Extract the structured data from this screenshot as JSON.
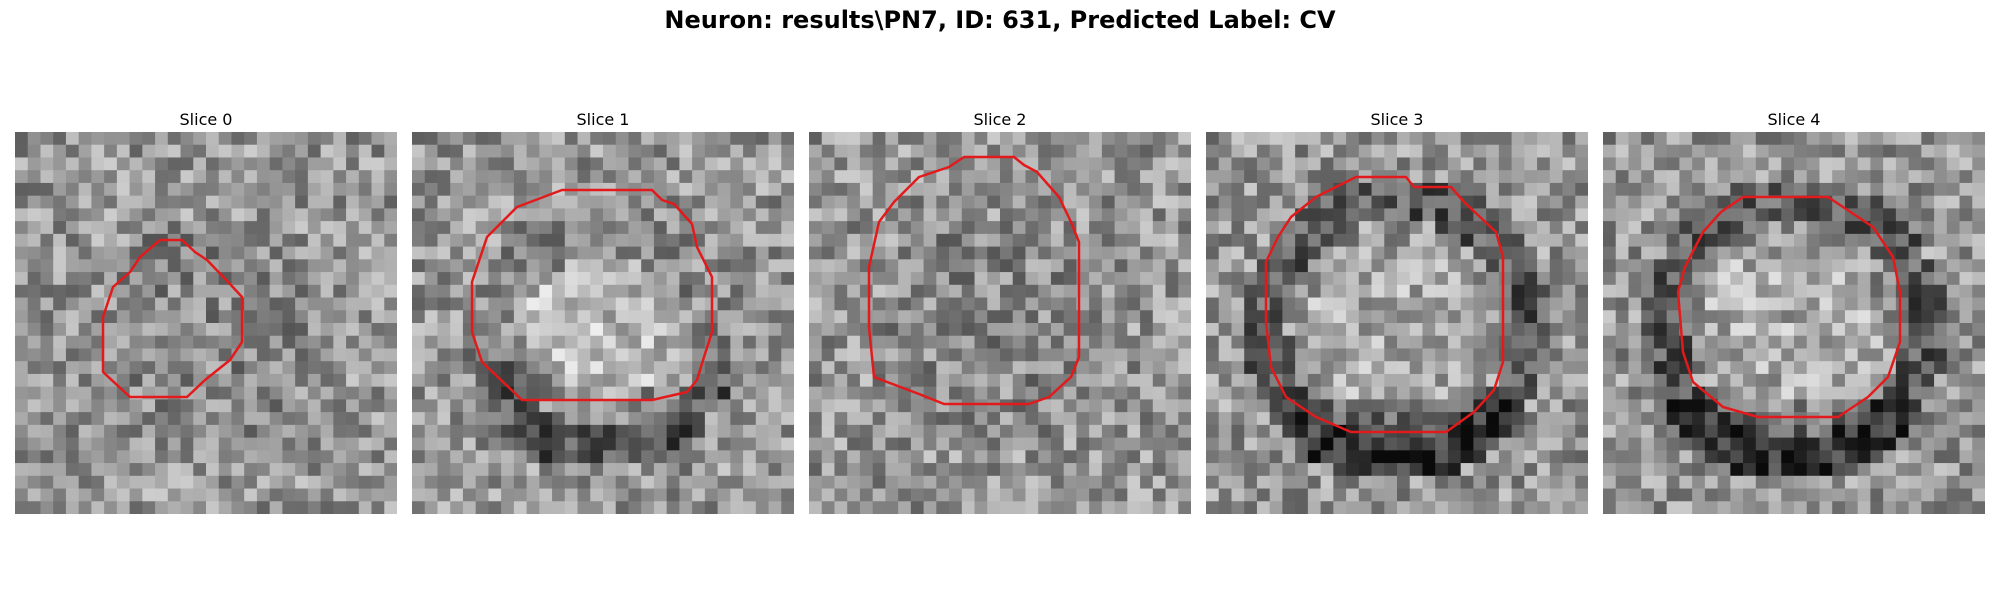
{
  "figure": {
    "title": "Neuron: results\\PN7, ID: 631, Predicted Label: CV"
  },
  "panels": [
    {
      "title": "Slice 0",
      "seed": 11,
      "texture": "fine-noise"
    },
    {
      "title": "Slice 1",
      "seed": 23,
      "texture": "bright-center"
    },
    {
      "title": "Slice 2",
      "seed": 37,
      "texture": "fine-noise"
    },
    {
      "title": "Slice 3",
      "seed": 41,
      "texture": "dark-ring"
    },
    {
      "title": "Slice 4",
      "seed": 59,
      "texture": "dark-ring"
    }
  ],
  "style": {
    "outline_color": "#e31a1c",
    "image_colormap": "gray"
  }
}
